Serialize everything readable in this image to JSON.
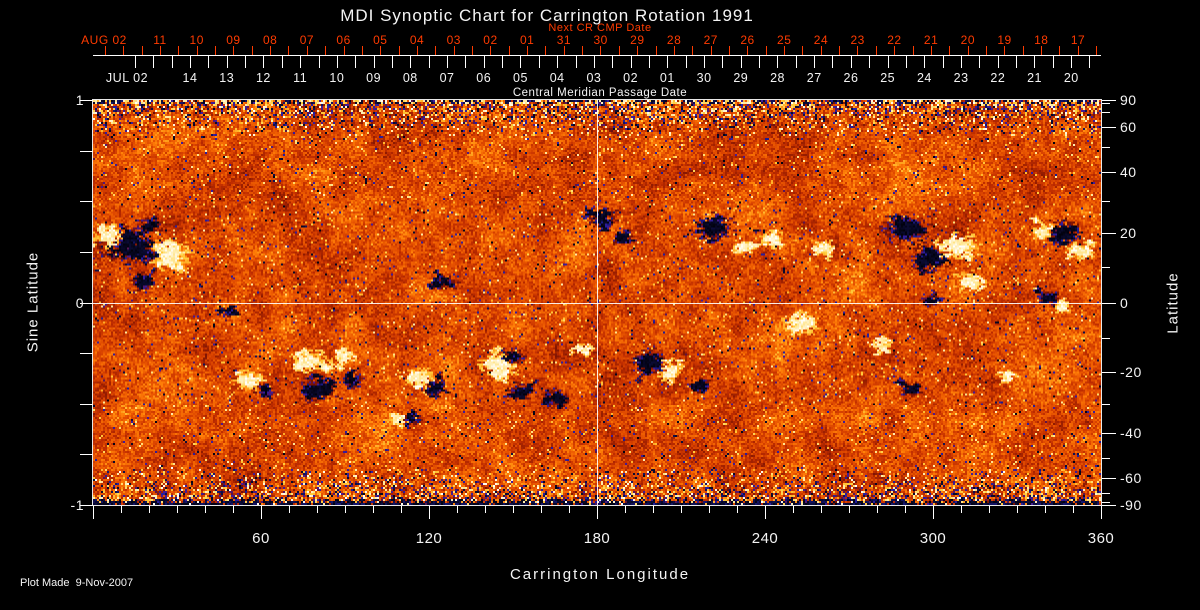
{
  "title": "MDI Synoptic Chart for Carrington Rotation 1991",
  "footer": "Plot Made  9-Nov-2007",
  "colors": {
    "background": "#000000",
    "axis_text": "#f4f4f4",
    "next_cr_red": "#ff3b00",
    "frame": "#ffffff",
    "field_negative": "#000010",
    "field_negative_fringe": "#2222a4",
    "field_quiet": "#de4600",
    "field_bright": "#ffce3e",
    "field_positive": "#ffffff"
  },
  "top_axis_next": {
    "label": "Next CR CMP Date",
    "month_label": "AUG 02",
    "day_labels": [
      "11",
      "10",
      "09",
      "08",
      "07",
      "06",
      "05",
      "04",
      "03",
      "02",
      "01",
      "31",
      "30",
      "29",
      "28",
      "27",
      "26",
      "25",
      "24",
      "23",
      "22",
      "21",
      "20",
      "19",
      "18",
      "17"
    ]
  },
  "top_axis_cmp": {
    "label": "Central Meridian Passage Date",
    "month_label": "JUL 02",
    "day_labels": [
      "14",
      "13",
      "12",
      "11",
      "10",
      "09",
      "08",
      "07",
      "06",
      "05",
      "04",
      "03",
      "02",
      "01",
      "30",
      "29",
      "28",
      "27",
      "26",
      "25",
      "24",
      "23",
      "22",
      "21",
      "20"
    ]
  },
  "left_axis": {
    "label": "Sine Latitude"
  },
  "right_axis": {
    "label": "Latitude"
  },
  "bottom_axis": {
    "label": "Carrington Longitude"
  },
  "chart_data": {
    "type": "heatmap",
    "title": "MDI Synoptic Chart for Carrington Rotation 1991",
    "subtitle_top": "Next CR CMP Date",
    "subtitle_plot": "Central Meridian Passage Date",
    "xlabel": "Carrington Longitude",
    "xlim": [
      0,
      360
    ],
    "xticks": [
      60,
      120,
      180,
      240,
      300,
      360
    ],
    "x_minor_tick_step": 10,
    "ylabel_left": "Sine Latitude",
    "ylim_sine": [
      -1,
      1
    ],
    "yticks_sine": [
      1,
      0,
      -1
    ],
    "y_minor_tick_step_sine": 0.25,
    "ylabel_right": "Latitude",
    "yticks_latitude": [
      90,
      60,
      40,
      20,
      0,
      -20,
      -40,
      -60,
      -90
    ],
    "yticks_latitude_minor": [
      80,
      70,
      50,
      30,
      10,
      -10,
      -30,
      -50,
      -70,
      -80
    ],
    "crosshair": {
      "longitude": 180,
      "latitude": 0
    },
    "colormap": "black/blue = negative polarity, orange/red = quiet sun, yellow/white = positive polarity",
    "polar_noise": "strong salt-and-pepper speckle for |sine latitude| > 0.8",
    "active_region_fields": [
      "lon_deg",
      "sine_lat",
      "polarity",
      "size_px"
    ],
    "active_regions": [
      [
        11.4,
        0.28,
        -1,
        13
      ],
      [
        5.4,
        0.32,
        1,
        8
      ],
      [
        26.8,
        0.23,
        1,
        10
      ],
      [
        17.9,
        0.1,
        -1,
        6
      ],
      [
        20.4,
        0.38,
        -1,
        5
      ],
      [
        48.9,
        -0.04,
        -1,
        4
      ],
      [
        55.0,
        -0.38,
        1,
        7
      ],
      [
        60.4,
        -0.42,
        -1,
        4
      ],
      [
        77.5,
        -0.29,
        1,
        8
      ],
      [
        80.4,
        -0.43,
        -1,
        9
      ],
      [
        90.0,
        -0.27,
        1,
        5
      ],
      [
        92.5,
        -0.39,
        -1,
        5
      ],
      [
        116.8,
        -0.37,
        1,
        7
      ],
      [
        121.1,
        -0.41,
        -1,
        6
      ],
      [
        108.9,
        -0.58,
        1,
        5
      ],
      [
        113.9,
        -0.57,
        -1,
        4
      ],
      [
        125.7,
        0.1,
        -1,
        5
      ],
      [
        144.6,
        -0.32,
        1,
        9
      ],
      [
        150.0,
        -0.27,
        -1,
        5
      ],
      [
        152.5,
        -0.44,
        -1,
        6
      ],
      [
        164.3,
        -0.47,
        -1,
        6
      ],
      [
        175.7,
        -0.23,
        1,
        4
      ],
      [
        181.1,
        0.42,
        -1,
        7
      ],
      [
        188.9,
        0.32,
        -1,
        5
      ],
      [
        198.2,
        -0.29,
        -1,
        8
      ],
      [
        205.4,
        -0.34,
        1,
        6
      ],
      [
        216.8,
        -0.41,
        -1,
        5
      ],
      [
        221.1,
        0.37,
        -1,
        9
      ],
      [
        232.9,
        0.27,
        1,
        5
      ],
      [
        242.5,
        0.31,
        1,
        6
      ],
      [
        260.7,
        0.27,
        1,
        5
      ],
      [
        252.5,
        -0.11,
        1,
        8
      ],
      [
        290.0,
        0.36,
        -1,
        11
      ],
      [
        298.9,
        0.21,
        -1,
        9
      ],
      [
        308.9,
        0.28,
        1,
        9
      ],
      [
        312.5,
        0.11,
        1,
        6
      ],
      [
        298.9,
        0.01,
        -1,
        4
      ],
      [
        281.1,
        -0.21,
        1,
        5
      ],
      [
        292.5,
        -0.43,
        -1,
        5
      ],
      [
        346.1,
        0.35,
        -1,
        8
      ],
      [
        339.6,
        0.35,
        1,
        5
      ],
      [
        353.2,
        0.25,
        1,
        6
      ],
      [
        341.1,
        0.02,
        -1,
        5
      ],
      [
        346.1,
        -0.03,
        1,
        4
      ],
      [
        325.7,
        -0.38,
        1,
        4
      ]
    ]
  }
}
